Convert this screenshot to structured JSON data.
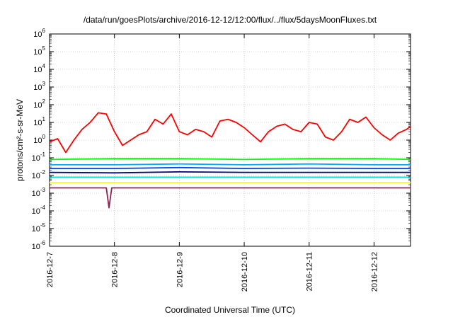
{
  "chart_data": {
    "type": "line",
    "title": "/data/run/goesPlots/archive/2016-12-12/12:00/flux/../flux/5daysMoonFluxes.txt",
    "xlabel": "Coordinated Universal Time (UTC)",
    "ylabel": "protons/cm²-s-sr-MeV",
    "yscale": "log",
    "ylim": [
      1e-06,
      1000000.0
    ],
    "xlim": [
      "2016-12-07T00:00",
      "2016-12-12T13:30"
    ],
    "grid": true,
    "legend": "none",
    "x_ticks": [
      "2016-12-7",
      "2016-12-8",
      "2016-12-9",
      "2016-12-10",
      "2016-12-11",
      "2016-12-12"
    ],
    "y_ticks": [
      {
        "base": "10",
        "exp": "-6"
      },
      {
        "base": "10",
        "exp": "-5"
      },
      {
        "base": "10",
        "exp": "-4"
      },
      {
        "base": "10",
        "exp": "-3"
      },
      {
        "base": "10",
        "exp": "-2"
      },
      {
        "base": "10",
        "exp": "-1"
      },
      {
        "base": "10",
        "exp": "0"
      },
      {
        "base": "10",
        "exp": "1"
      },
      {
        "base": "10",
        "exp": "2"
      },
      {
        "base": "10",
        "exp": "3"
      },
      {
        "base": "10",
        "exp": "4"
      },
      {
        "base": "10",
        "exp": "5"
      },
      {
        "base": "10",
        "exp": "6"
      }
    ],
    "series": [
      {
        "color": "#ff0000",
        "x": [
          "2016-12-07T00:00",
          "2016-12-07T03:00",
          "2016-12-07T06:00",
          "2016-12-07T09:00",
          "2016-12-07T12:00",
          "2016-12-07T15:00",
          "2016-12-07T18:00",
          "2016-12-07T21:00",
          "2016-12-08T00:00",
          "2016-12-08T03:00",
          "2016-12-08T06:00",
          "2016-12-08T09:00",
          "2016-12-08T12:00",
          "2016-12-08T15:00",
          "2016-12-08T18:00",
          "2016-12-08T21:00",
          "2016-12-09T00:00",
          "2016-12-09T03:00",
          "2016-12-09T06:00",
          "2016-12-09T09:00",
          "2016-12-09T12:00",
          "2016-12-09T15:00",
          "2016-12-09T18:00",
          "2016-12-09T21:00",
          "2016-12-10T00:00",
          "2016-12-10T03:00",
          "2016-12-10T06:00",
          "2016-12-10T09:00",
          "2016-12-10T12:00",
          "2016-12-10T15:00",
          "2016-12-10T18:00",
          "2016-12-10T21:00",
          "2016-12-11T00:00",
          "2016-12-11T03:00",
          "2016-12-11T06:00",
          "2016-12-11T09:00",
          "2016-12-11T12:00",
          "2016-12-11T15:00",
          "2016-12-11T18:00",
          "2016-12-11T21:00",
          "2016-12-12T00:00",
          "2016-12-12T03:00",
          "2016-12-12T06:00",
          "2016-12-12T09:00",
          "2016-12-12T12:00",
          "2016-12-12T13:30"
        ],
        "values": [
          0.8,
          1.2,
          0.2,
          1.0,
          4,
          10,
          35,
          30,
          3,
          0.5,
          1,
          2,
          3,
          15,
          8,
          30,
          3,
          2,
          4,
          3,
          1.5,
          12,
          15,
          10,
          5,
          2,
          0.8,
          3,
          6,
          8,
          4,
          3,
          10,
          8,
          1.5,
          1,
          3,
          15,
          10,
          20,
          5,
          2,
          1,
          2.5,
          4,
          6
        ]
      },
      {
        "color": "#00ff00",
        "x": [
          "2016-12-07T00:00",
          "2016-12-08T00:00",
          "2016-12-09T00:00",
          "2016-12-10T00:00",
          "2016-12-11T00:00",
          "2016-12-12T00:00",
          "2016-12-12T13:30"
        ],
        "values": [
          0.08,
          0.09,
          0.09,
          0.08,
          0.09,
          0.09,
          0.08
        ]
      },
      {
        "color": "#00aaff",
        "x": [
          "2016-12-07T00:00",
          "2016-12-08T00:00",
          "2016-12-09T00:00",
          "2016-12-10T00:00",
          "2016-12-11T00:00",
          "2016-12-12T00:00",
          "2016-12-12T13:30"
        ],
        "values": [
          0.04,
          0.04,
          0.045,
          0.04,
          0.045,
          0.04,
          0.04
        ]
      },
      {
        "color": "#0044ff",
        "x": [
          "2016-12-07T00:00",
          "2016-12-08T00:00",
          "2016-12-09T00:00",
          "2016-12-10T00:00",
          "2016-12-11T00:00",
          "2016-12-12T00:00",
          "2016-12-12T13:30"
        ],
        "values": [
          0.025,
          0.025,
          0.028,
          0.025,
          0.026,
          0.025,
          0.025
        ]
      },
      {
        "color": "#00008b",
        "x": [
          "2016-12-07T00:00",
          "2016-12-08T00:00",
          "2016-12-09T00:00",
          "2016-12-10T00:00",
          "2016-12-11T00:00",
          "2016-12-12T00:00",
          "2016-12-12T13:30"
        ],
        "values": [
          0.015,
          0.014,
          0.016,
          0.015,
          0.015,
          0.015,
          0.015
        ]
      },
      {
        "color": "#00dddd",
        "x": [
          "2016-12-07T00:00",
          "2016-12-08T00:00",
          "2016-12-09T00:00",
          "2016-12-10T00:00",
          "2016-12-11T00:00",
          "2016-12-12T00:00",
          "2016-12-12T13:30"
        ],
        "values": [
          0.008,
          0.008,
          0.008,
          0.008,
          0.008,
          0.008,
          0.008
        ]
      },
      {
        "color": "#ffff00",
        "x": [
          "2016-12-07T00:00",
          "2016-12-08T00:00",
          "2016-12-09T00:00",
          "2016-12-10T00:00",
          "2016-12-11T00:00",
          "2016-12-12T00:00",
          "2016-12-12T13:30"
        ],
        "values": [
          0.004,
          0.004,
          0.004,
          0.004,
          0.004,
          0.004,
          0.004
        ]
      },
      {
        "color": "#8b2252",
        "x": [
          "2016-12-07T00:00",
          "2016-12-07T21:00",
          "2016-12-07T22:00",
          "2016-12-07T23:00",
          "2016-12-08T00:00",
          "2016-12-09T00:00",
          "2016-12-10T00:00",
          "2016-12-11T00:00",
          "2016-12-12T00:00",
          "2016-12-12T13:30"
        ],
        "values": [
          0.002,
          0.002,
          0.00015,
          0.002,
          0.002,
          0.002,
          0.002,
          0.002,
          0.002,
          0.002
        ]
      }
    ]
  }
}
